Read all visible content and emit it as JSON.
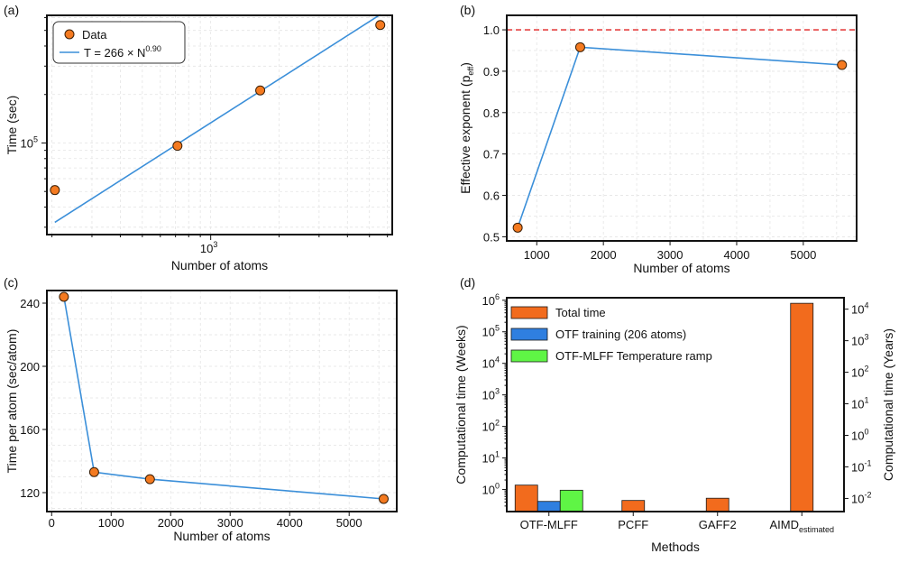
{
  "colors": {
    "marker": "#f47a20",
    "line": "#3b8fd9",
    "ref_line": "#e02020",
    "total": "#f26b1d",
    "otf": "#2f7fe0",
    "ramp": "#5ff545"
  },
  "chart_data": [
    {
      "id": "a",
      "panel_label": "(a)",
      "type": "scatter",
      "xscale": "log",
      "yscale": "log",
      "xlabel": "Number of atoms",
      "ylabel": "Time (sec)",
      "xlim": [
        190,
        6300
      ],
      "ylim": [
        27000,
        620000
      ],
      "xticks": [
        {
          "value": 1000,
          "base": "10",
          "exp": "3"
        }
      ],
      "yticks": [
        {
          "value": 100000,
          "base": "10",
          "exp": "5"
        }
      ],
      "series": [
        {
          "name": "Data",
          "kind": "points",
          "x": [
            206,
            714,
            1652,
            5580
          ],
          "y": [
            51000,
            96000,
            212000,
            540000
          ]
        },
        {
          "name": "T = 266 × N",
          "name_exp": "0.90",
          "kind": "fit",
          "coef": 266,
          "power": 0.9,
          "x_range": [
            206,
            5580
          ]
        }
      ],
      "legend": {
        "position": "top-left",
        "data_label": "Data",
        "fit_label": "T = 266 × N",
        "fit_exp": "0.90"
      }
    },
    {
      "id": "b",
      "panel_label": "(b)",
      "type": "line",
      "xlabel": "Number of atoms",
      "ylabel": "Effective exponent (p",
      "ylabel_sub": "eff",
      "ylabel_end": ")",
      "xlim": [
        550,
        5800
      ],
      "ylim": [
        0.49,
        1.035
      ],
      "xticks": [
        1000,
        2000,
        3000,
        4000,
        5000
      ],
      "yticks": [
        0.5,
        0.6,
        0.7,
        0.8,
        0.9,
        1.0
      ],
      "ytick_labels": [
        "0.5",
        "0.6",
        "0.7",
        "0.8",
        "0.9",
        "1.0"
      ],
      "x": [
        714,
        1652,
        5580
      ],
      "y": [
        0.522,
        0.958,
        0.915
      ],
      "ref_line": 1.0
    },
    {
      "id": "c",
      "panel_label": "(c)",
      "type": "line",
      "xlabel": "Number of atoms",
      "ylabel": "Time per atom (sec/atom)",
      "xlim": [
        -80,
        5800
      ],
      "ylim": [
        108,
        248
      ],
      "xticks": [
        0,
        1000,
        2000,
        3000,
        4000,
        5000
      ],
      "yticks": [
        120,
        160,
        200,
        240
      ],
      "x": [
        206,
        714,
        1652,
        5580
      ],
      "y": [
        244,
        133,
        128.5,
        116
      ]
    },
    {
      "id": "d",
      "panel_label": "(d)",
      "type": "bar",
      "yscale": "log",
      "xlabel": "Methods",
      "ylabel": "Computational time (Weeks)",
      "y2label": "Computational time (Years)",
      "ylim": [
        0.2,
        1200000
      ],
      "categories": [
        {
          "label": "OTF-MLFF",
          "sub": ""
        },
        {
          "label": "PCFF",
          "sub": ""
        },
        {
          "label": "GAFF2",
          "sub": ""
        },
        {
          "label": "AIMD",
          "sub": "estimated"
        }
      ],
      "yticks": [
        {
          "value": 1,
          "base": "10",
          "exp": "0"
        },
        {
          "value": 10,
          "base": "10",
          "exp": "1"
        },
        {
          "value": 100,
          "base": "10",
          "exp": "2"
        },
        {
          "value": 1000,
          "base": "10",
          "exp": "3"
        },
        {
          "value": 10000,
          "base": "10",
          "exp": "4"
        },
        {
          "value": 100000,
          "base": "10",
          "exp": "5"
        },
        {
          "value": 1000000,
          "base": "10",
          "exp": "6"
        }
      ],
      "y2ticks": [
        {
          "value": 0.01,
          "base": "10",
          "exp": "-2"
        },
        {
          "value": 0.1,
          "base": "10",
          "exp": "-1"
        },
        {
          "value": 1,
          "base": "10",
          "exp": "0"
        },
        {
          "value": 10,
          "base": "10",
          "exp": "1"
        },
        {
          "value": 100,
          "base": "10",
          "exp": "2"
        },
        {
          "value": 1000,
          "base": "10",
          "exp": "3"
        },
        {
          "value": 10000,
          "base": "10",
          "exp": "4"
        }
      ],
      "weeks_per_year": 52.18,
      "series": [
        {
          "name": "Total time",
          "color_key": "total",
          "values": [
            1.38,
            0.45,
            0.53,
            800000
          ]
        },
        {
          "name": "OTF training (206 atoms)",
          "color_key": "otf",
          "values": [
            0.42,
            null,
            null,
            null
          ]
        },
        {
          "name": "OTF-MLFF Temperature ramp",
          "color_key": "ramp",
          "values": [
            0.95,
            null,
            null,
            null
          ]
        }
      ],
      "legend_position": "top-left"
    }
  ]
}
